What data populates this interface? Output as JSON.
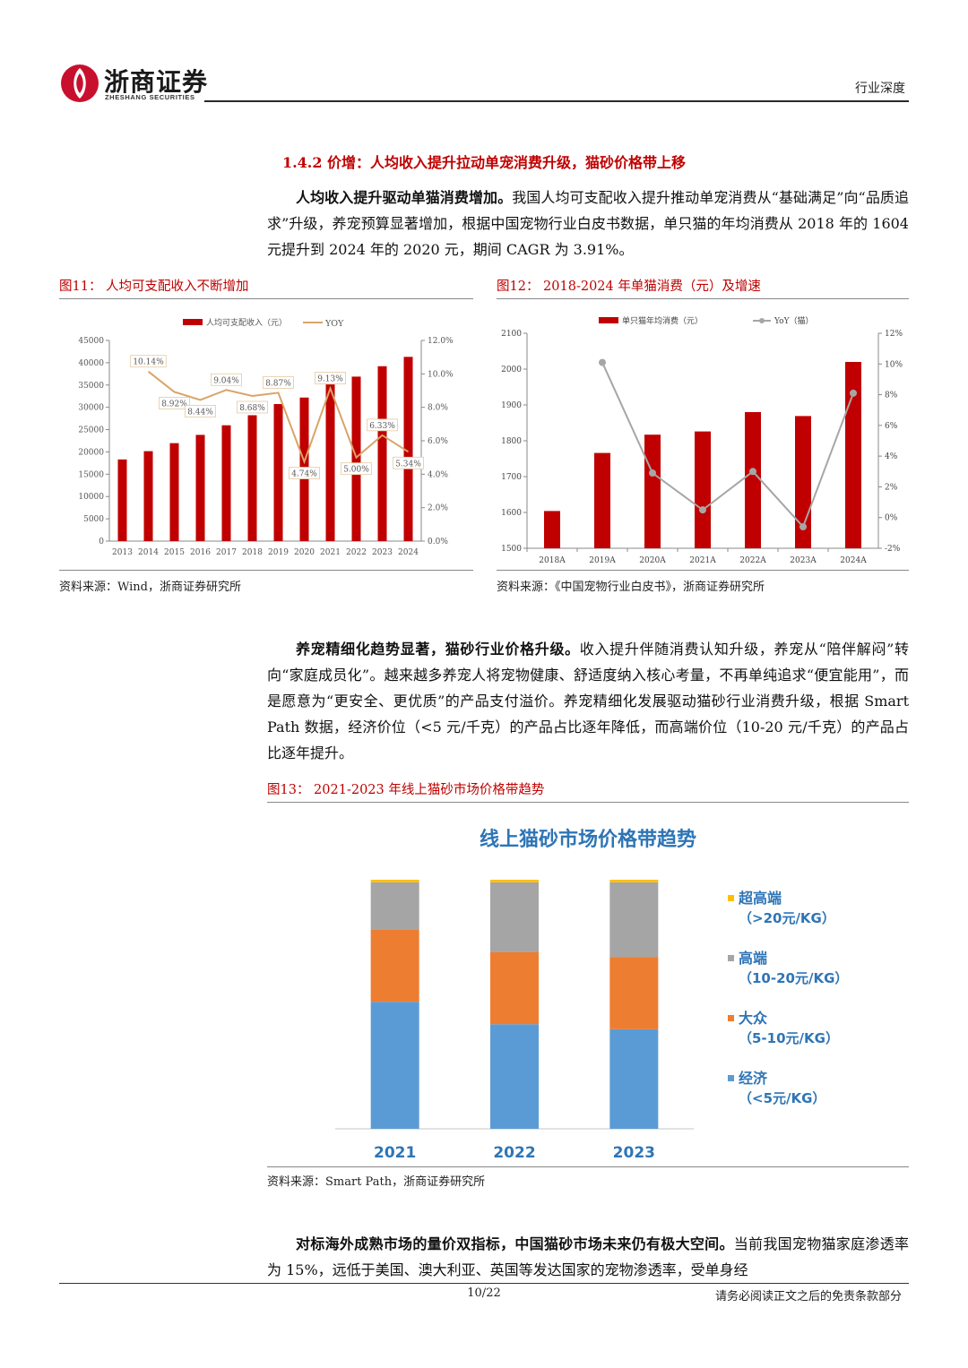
{
  "header": {
    "brand_name": "浙商证券",
    "brand_sub": "ZHESHANG SECURITIES",
    "report_type": "行业深度"
  },
  "section_title": "1.4.2 价增：人均收入提升拉动单宠消费升级，猫砂价格带上移",
  "para1": {
    "lead": "人均收入提升驱动单猫消费增加。",
    "text": "我国人均可支配收入提升推动单宠消费从“基础满足”向“品质追求”升级，养宠预算显著增加，根据中国宠物行业白皮书数据，单只猫的年均消费从 2018 年的 1604 元提升到 2024 年的 2020 元，期间 CAGR 为 3.91%。"
  },
  "fig11": {
    "title": "图11：  人均可支配收入不断增加",
    "source": "资料来源：Wind，浙商证券研究所"
  },
  "fig12": {
    "title": "图12：  2018-2024 年单猫消费（元）及增速",
    "source": "资料来源：《中国宠物行业白皮书》，浙商证券研究所"
  },
  "para2": {
    "lead": "养宠精细化趋势显著，猫砂行业价格升级。",
    "text": "收入提升伴随消费认知升级，养宠从“陪伴解闷”转向“家庭成员化”。越来越多养宠人将宠物健康、舒适度纳入核心考量，不再单纯追求“便宜能用”，而是愿意为“更安全、更优质”的产品支付溢价。养宠精细化发展驱动猫砂行业消费升级，根据 Smart Path 数据，经济价位（<5 元/千克）的产品占比逐年降低，而高端价位（10-20 元/千克）的产品占比逐年提升。"
  },
  "fig13": {
    "title": "图13：  2021-2023 年线上猫砂市场价格带趋势",
    "source": "资料来源：Smart Path，浙商证券研究所"
  },
  "para3": {
    "lead": "对标海外成熟市场的量价双指标，中国猫砂市场未来仍有极大空间。",
    "text": "当前我国宠物猫家庭渗透率为 15%，远低于美国、澳大利亚、英国等发达国家的宠物渗透率，受单身经"
  },
  "footer": {
    "page": "10/22",
    "disclaimer": "请务必阅读正文之后的免责条款部分"
  },
  "colors": {
    "red": "#c00000",
    "bar_red": "#c00000",
    "line_orange": "#d8a467",
    "line_gray": "#a6a6a6",
    "blue": "#5b9bd5",
    "orange": "#ed7d31",
    "gray": "#a5a5a5",
    "yellow": "#ffc000"
  },
  "chart_data": [
    {
      "type": "bar",
      "categories": [
        "2013",
        "2014",
        "2015",
        "2016",
        "2017",
        "2018",
        "2019",
        "2020",
        "2021",
        "2022",
        "2023",
        "2024"
      ],
      "series": [
        {
          "name": "人均可支配收入（元）",
          "axis": "left",
          "values": [
            18311,
            20167,
            21966,
            23821,
            25974,
            28228,
            30733,
            32189,
            35128,
            36883,
            39218,
            41314
          ]
        },
        {
          "name": "YOY",
          "type": "line",
          "axis": "right",
          "values": [
            null,
            10.14,
            8.92,
            8.44,
            9.04,
            8.68,
            8.87,
            4.74,
            9.13,
            5.0,
            6.33,
            5.34
          ],
          "labels": [
            "",
            "10.14%",
            "8.92%",
            "8.44%",
            "9.04%",
            "8.68%",
            "8.87%",
            "4.74%",
            "9.13%",
            "5.00%",
            "6.33%",
            "5.34%"
          ]
        }
      ],
      "ylim": [
        0,
        45000
      ],
      "yticks": [
        "0",
        "5000",
        "10000",
        "15000",
        "20000",
        "25000",
        "30000",
        "35000",
        "40000",
        "45000"
      ],
      "y2lim": [
        0,
        12
      ],
      "y2ticks": [
        "0.0%",
        "2.0%",
        "4.0%",
        "6.0%",
        "8.0%",
        "10.0%",
        "12.0%"
      ],
      "legend": "top"
    },
    {
      "type": "bar",
      "categories": [
        "2018A",
        "2019A",
        "2020A",
        "2021A",
        "2022A",
        "2023A",
        "2024A"
      ],
      "series": [
        {
          "name": "单只猫年均消费（元）",
          "axis": "left",
          "values": [
            1604,
            1766,
            1817,
            1826,
            1880,
            1869,
            2020
          ]
        },
        {
          "name": "YoY（猫）",
          "type": "line",
          "axis": "right",
          "values": [
            null,
            10.1,
            2.9,
            0.5,
            3.0,
            -0.6,
            8.1
          ]
        }
      ],
      "ylim": [
        1500,
        2100
      ],
      "yticks": [
        "1500",
        "1600",
        "1700",
        "1800",
        "1900",
        "2000",
        "2100"
      ],
      "y2lim": [
        -2,
        12
      ],
      "y2ticks": [
        "-2%",
        "0%",
        "2%",
        "4%",
        "6%",
        "8%",
        "10%",
        "12%"
      ],
      "legend": "top"
    },
    {
      "type": "bar",
      "stacked": true,
      "title": "线上猫砂市场价格带趋势",
      "categories": [
        "2021",
        "2022",
        "2023"
      ],
      "series": [
        {
          "name": "经济",
          "sub": "（<5元/KG）",
          "values": [
            51,
            42,
            40
          ]
        },
        {
          "name": "大众",
          "sub": "（5-10元/KG）",
          "values": [
            29,
            29,
            29
          ]
        },
        {
          "name": "高端",
          "sub": "（10-20元/KG）",
          "values": [
            19,
            28,
            30
          ]
        },
        {
          "name": "超高端",
          "sub": "（>20元/KG）",
          "values": [
            1,
            1,
            1
          ]
        }
      ],
      "ylim": [
        0,
        100
      ],
      "legend": "right"
    }
  ]
}
